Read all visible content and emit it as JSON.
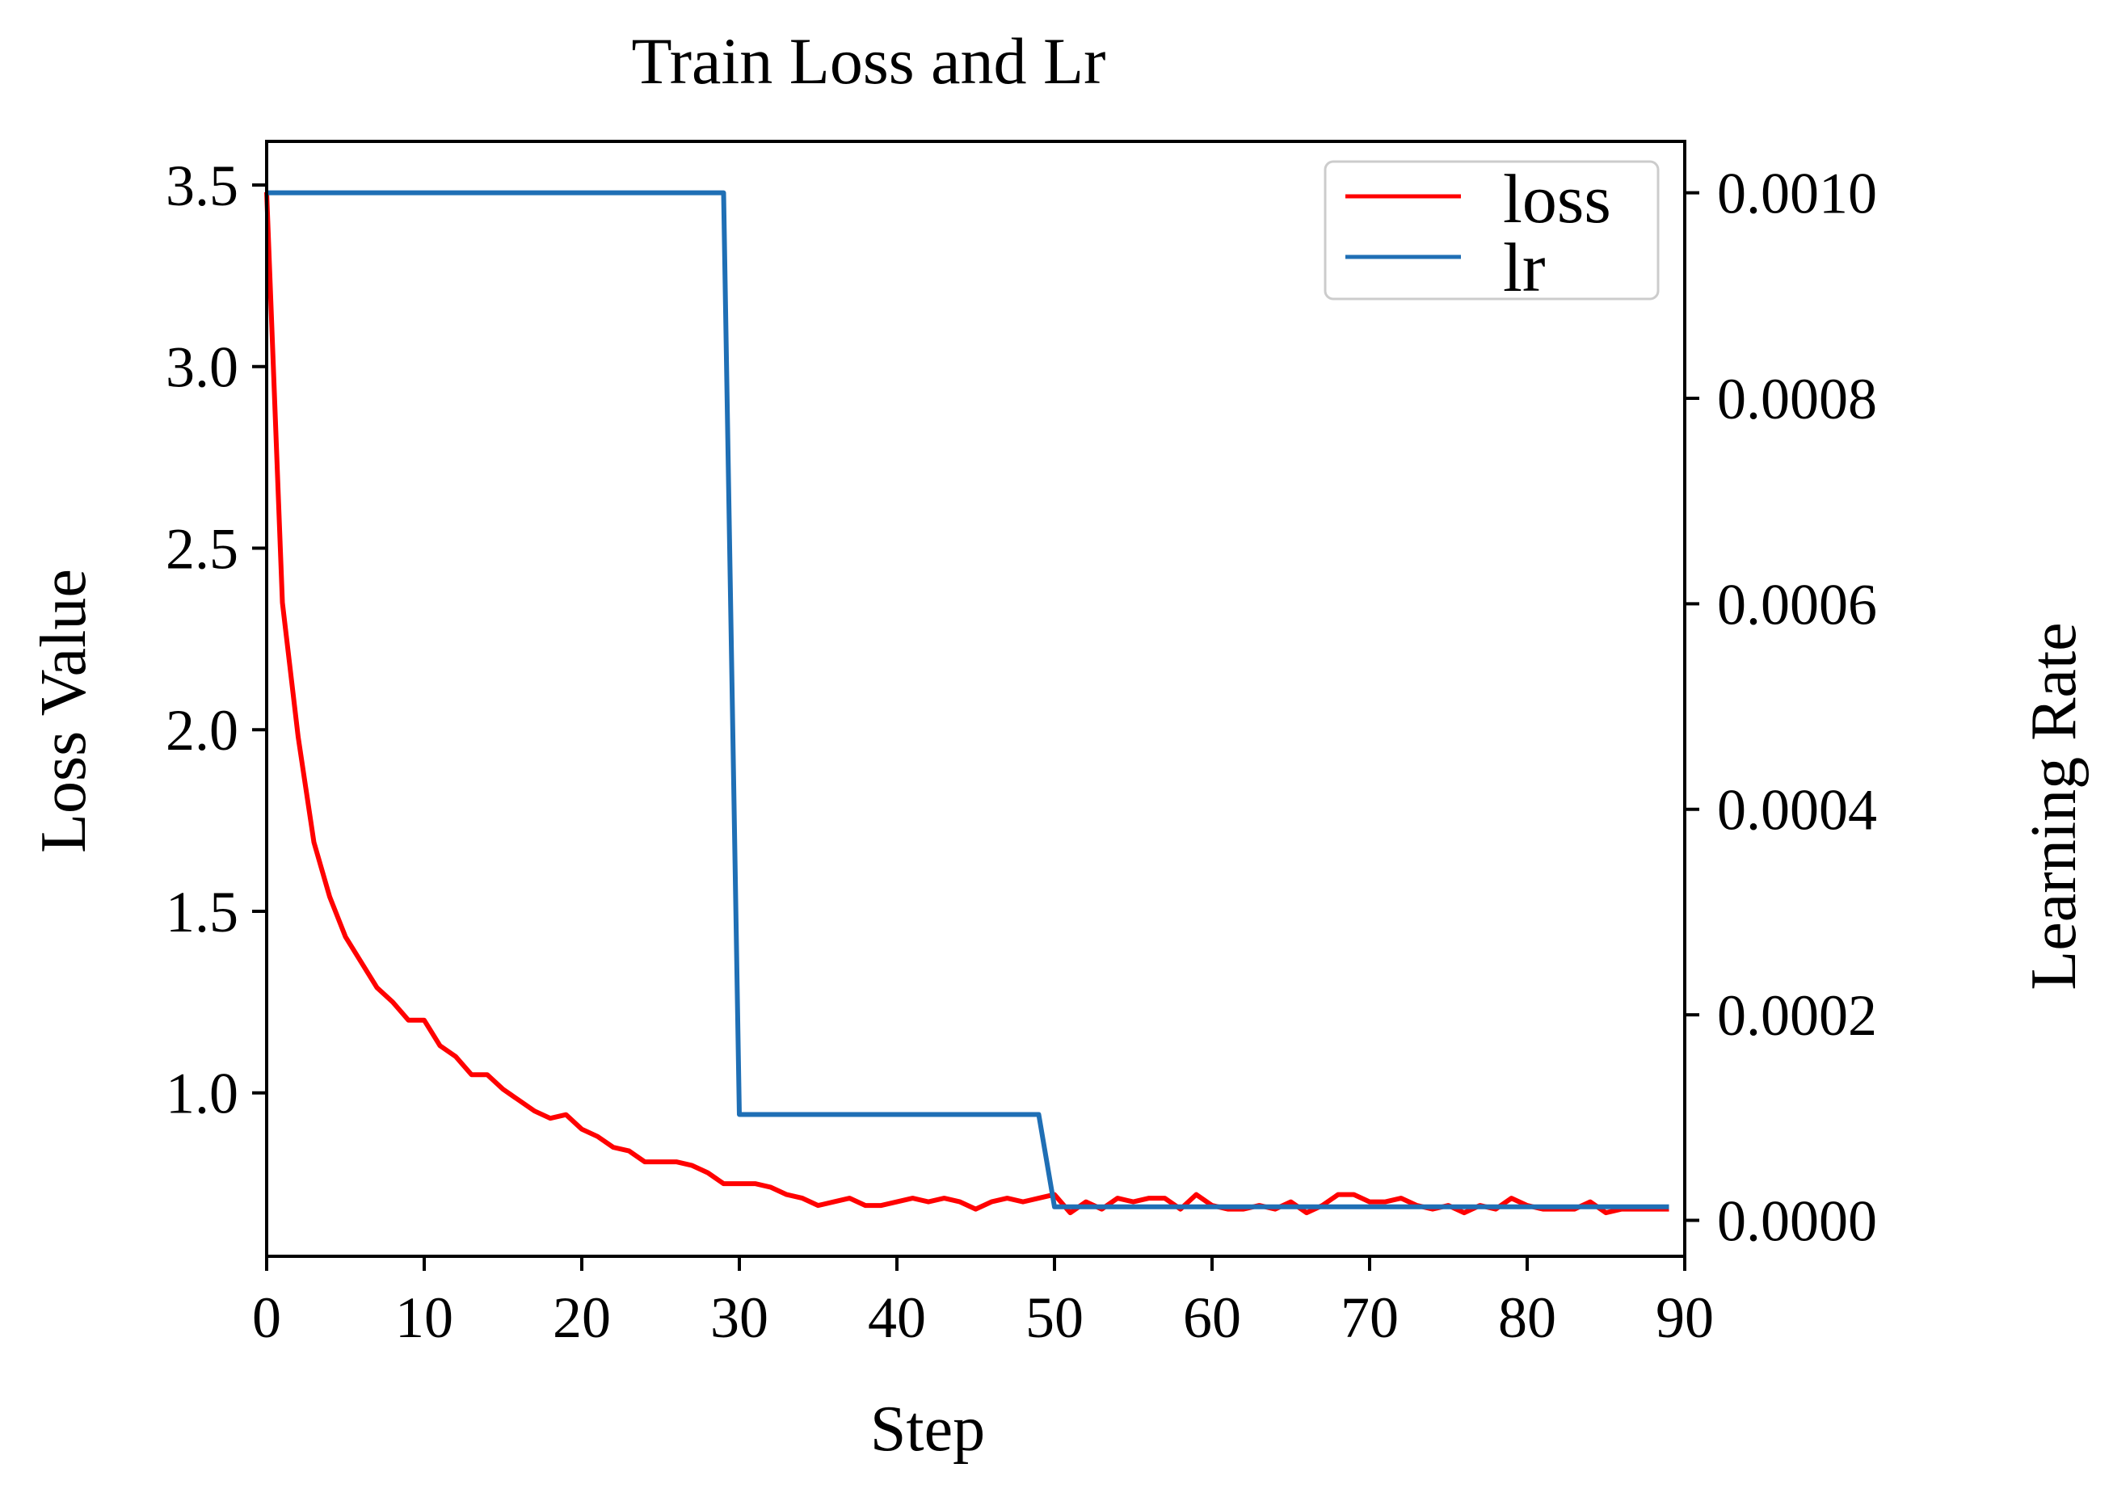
{
  "chart_data": {
    "type": "line",
    "title": "Train Loss and Lr",
    "xlabel": "Step",
    "ylabel": "Loss Value",
    "y2label": "Learning Rate",
    "xlim": [
      0,
      90
    ],
    "ylim": [
      0.55,
      3.62
    ],
    "y2lim": [
      -3.5e-05,
      0.00105
    ],
    "xticks": [
      "0",
      "10",
      "20",
      "30",
      "40",
      "50",
      "60",
      "70",
      "80",
      "90"
    ],
    "xtick_values": [
      0,
      10,
      20,
      30,
      40,
      50,
      60,
      70,
      80,
      90
    ],
    "yticks": [
      "1.0",
      "1.5",
      "2.0",
      "2.5",
      "3.0",
      "3.5"
    ],
    "ytick_values": [
      1.0,
      1.5,
      2.0,
      2.5,
      3.0,
      3.5
    ],
    "y2ticks": [
      "0.0000",
      "0.0002",
      "0.0004",
      "0.0006",
      "0.0008",
      "0.0010"
    ],
    "y2tick_values": [
      0.0,
      0.0002,
      0.0004,
      0.0006,
      0.0008,
      0.001
    ],
    "grid": false,
    "legend_position": "top-right",
    "series": [
      {
        "name": "loss",
        "axis": "left",
        "color": "#ff0000",
        "x": [
          0,
          1,
          2,
          3,
          4,
          5,
          6,
          7,
          8,
          9,
          10,
          11,
          12,
          13,
          14,
          15,
          16,
          17,
          18,
          19,
          20,
          21,
          22,
          23,
          24,
          25,
          26,
          27,
          28,
          29,
          30,
          31,
          32,
          33,
          34,
          35,
          36,
          37,
          38,
          39,
          40,
          41,
          42,
          43,
          44,
          45,
          46,
          47,
          48,
          49,
          50,
          51,
          52,
          53,
          54,
          55,
          56,
          57,
          58,
          59,
          60,
          61,
          62,
          63,
          64,
          65,
          66,
          67,
          68,
          69,
          70,
          71,
          72,
          73,
          74,
          75,
          76,
          77,
          78,
          79,
          80,
          81,
          82,
          83,
          84,
          85,
          86,
          87,
          88,
          89
        ],
        "values": [
          3.48,
          2.35,
          1.98,
          1.69,
          1.54,
          1.43,
          1.36,
          1.29,
          1.25,
          1.2,
          1.2,
          1.13,
          1.1,
          1.05,
          1.05,
          1.01,
          0.98,
          0.95,
          0.93,
          0.94,
          0.9,
          0.88,
          0.85,
          0.84,
          0.81,
          0.81,
          0.81,
          0.8,
          0.78,
          0.75,
          0.75,
          0.75,
          0.74,
          0.72,
          0.71,
          0.69,
          0.7,
          0.71,
          0.69,
          0.69,
          0.7,
          0.71,
          0.7,
          0.71,
          0.7,
          0.68,
          0.7,
          0.71,
          0.7,
          0.71,
          0.72,
          0.67,
          0.7,
          0.68,
          0.71,
          0.7,
          0.71,
          0.71,
          0.68,
          0.72,
          0.69,
          0.68,
          0.68,
          0.69,
          0.68,
          0.7,
          0.67,
          0.69,
          0.72,
          0.72,
          0.7,
          0.7,
          0.71,
          0.69,
          0.68,
          0.69,
          0.67,
          0.69,
          0.68,
          0.71,
          0.69,
          0.68,
          0.68,
          0.68,
          0.7,
          0.67,
          0.68,
          0.68,
          0.68,
          0.68
        ]
      },
      {
        "name": "lr",
        "axis": "right",
        "color": "#1f6fb5",
        "x": [
          0,
          29,
          30,
          49,
          50,
          89
        ],
        "values": [
          0.001,
          0.001,
          0.000103,
          0.000103,
          1.31e-05,
          1.31e-05
        ]
      }
    ]
  }
}
